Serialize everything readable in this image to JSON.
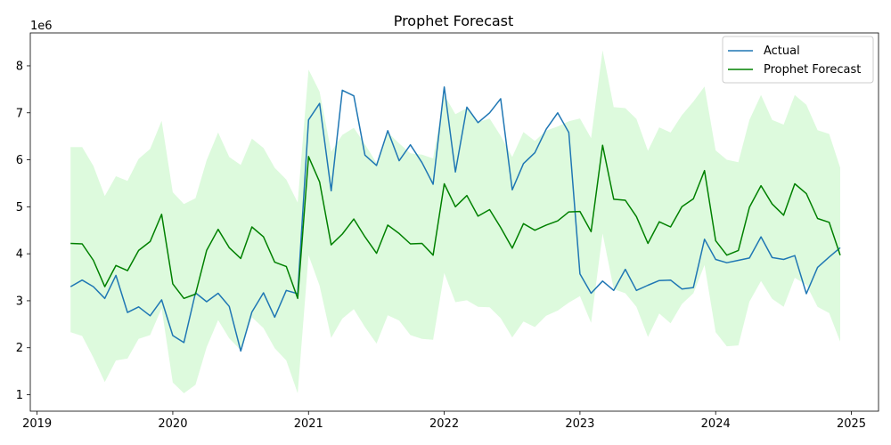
{
  "chart_data": {
    "type": "line",
    "title": "Prophet Forecast",
    "xlabel": "",
    "ylabel": "",
    "y_scale_label": "1e6",
    "xlim": [
      2018.95,
      2025.2
    ],
    "ylim": [
      0.65,
      8.7
    ],
    "x_ticks": [
      "2019",
      "2020",
      "2021",
      "2022",
      "2023",
      "2024",
      "2025"
    ],
    "x_tick_values": [
      2019,
      2020,
      2021,
      2022,
      2023,
      2024,
      2025
    ],
    "y_ticks": [
      "1",
      "2",
      "3",
      "4",
      "5",
      "6",
      "7",
      "8"
    ],
    "y_tick_values": [
      1,
      2,
      3,
      4,
      5,
      6,
      7,
      8
    ],
    "grid": false,
    "legend_position": "top-right",
    "x": [
      2019.247,
      2019.332,
      2019.415,
      2019.499,
      2019.581,
      2019.666,
      2019.748,
      2019.833,
      2019.918,
      2020.0,
      2020.082,
      2020.167,
      2020.249,
      2020.334,
      2020.416,
      2020.501,
      2020.583,
      2020.668,
      2020.751,
      2020.836,
      2020.92,
      2021.0,
      2021.082,
      2021.167,
      2021.249,
      2021.334,
      2021.416,
      2021.501,
      2021.584,
      2021.668,
      2021.751,
      2021.836,
      2021.918,
      2022.0,
      2022.082,
      2022.167,
      2022.249,
      2022.334,
      2022.416,
      2022.501,
      2022.584,
      2022.668,
      2022.751,
      2022.836,
      2022.918,
      2023.0,
      2023.082,
      2023.167,
      2023.249,
      2023.334,
      2023.416,
      2023.501,
      2023.584,
      2023.668,
      2023.751,
      2023.836,
      2023.918,
      2024.0,
      2024.082,
      2024.167,
      2024.249,
      2024.334,
      2024.416,
      2024.501,
      2024.583,
      2024.668,
      2024.751,
      2024.836,
      2024.918
    ],
    "series": [
      {
        "name": "Actual",
        "color": "#1f77b4",
        "values": [
          3.3,
          3.44,
          3.3,
          3.05,
          3.54,
          2.75,
          2.87,
          2.68,
          3.02,
          2.26,
          2.11,
          3.17,
          2.98,
          3.16,
          2.88,
          1.93,
          2.76,
          3.17,
          2.65,
          3.22,
          3.15,
          6.85,
          7.2,
          5.34,
          7.48,
          7.36,
          6.1,
          5.88,
          6.62,
          5.98,
          6.32,
          5.94,
          5.48,
          7.55,
          5.74,
          7.12,
          6.79,
          7.0,
          7.3,
          5.36,
          5.92,
          6.15,
          6.65,
          7.0,
          6.58,
          3.57,
          3.16,
          3.42,
          3.22,
          3.67,
          3.22,
          3.33,
          3.43,
          3.44,
          3.25,
          3.28,
          4.31,
          3.88,
          3.81,
          3.86,
          3.91,
          4.36,
          3.92,
          3.88,
          3.96,
          3.15,
          3.71,
          3.93,
          4.13
        ]
      },
      {
        "name": "Prophet Forecast",
        "color": "#008000",
        "values": [
          4.22,
          4.21,
          3.86,
          3.3,
          3.75,
          3.64,
          4.07,
          4.26,
          4.84,
          3.36,
          3.05,
          3.14,
          4.07,
          4.52,
          4.13,
          3.9,
          4.57,
          4.36,
          3.82,
          3.73,
          3.05,
          6.07,
          5.53,
          4.19,
          4.42,
          4.74,
          4.36,
          4.01,
          4.61,
          4.43,
          4.21,
          4.22,
          3.97,
          5.49,
          5.0,
          5.24,
          4.8,
          4.94,
          4.56,
          4.12,
          4.64,
          4.5,
          4.61,
          4.7,
          4.89,
          4.9,
          4.47,
          6.31,
          5.16,
          5.14,
          4.79,
          4.22,
          4.68,
          4.57,
          5.0,
          5.17,
          5.77,
          4.28,
          3.97,
          4.07,
          4.99,
          5.45,
          5.06,
          4.82,
          5.49,
          5.28,
          4.75,
          4.67,
          3.97
        ]
      }
    ],
    "interval": {
      "fill_color": "#90ee90",
      "opacity": 0.3,
      "upper": [
        6.27,
        6.27,
        5.87,
        5.23,
        5.65,
        5.55,
        6.02,
        6.23,
        6.83,
        5.31,
        5.06,
        5.18,
        5.99,
        6.58,
        6.06,
        5.89,
        6.45,
        6.25,
        5.83,
        5.58,
        5.09,
        7.92,
        7.45,
        6.17,
        6.53,
        6.68,
        6.33,
        5.93,
        6.58,
        6.35,
        6.14,
        6.11,
        6.03,
        7.38,
        6.97,
        7.1,
        6.8,
        6.88,
        6.51,
        6.06,
        6.59,
        6.4,
        6.62,
        6.71,
        6.82,
        6.88,
        6.46,
        8.33,
        7.12,
        7.1,
        6.87,
        6.19,
        6.69,
        6.58,
        6.95,
        7.24,
        7.56,
        6.2,
        6.0,
        5.95,
        6.85,
        7.38,
        6.85,
        6.75,
        7.38,
        7.17,
        6.63,
        6.55,
        5.83
      ],
      "lower": [
        2.33,
        2.25,
        1.79,
        1.27,
        1.73,
        1.77,
        2.19,
        2.27,
        2.84,
        1.26,
        1.03,
        1.21,
        2.01,
        2.59,
        2.2,
        1.95,
        2.65,
        2.42,
        1.99,
        1.73,
        1.03,
        3.97,
        3.32,
        2.21,
        2.62,
        2.82,
        2.44,
        2.09,
        2.69,
        2.58,
        2.27,
        2.19,
        2.17,
        3.59,
        2.97,
        3.01,
        2.87,
        2.86,
        2.63,
        2.22,
        2.56,
        2.44,
        2.68,
        2.79,
        2.96,
        3.1,
        2.53,
        4.43,
        3.25,
        3.16,
        2.87,
        2.23,
        2.73,
        2.52,
        2.93,
        3.16,
        3.76,
        2.33,
        2.03,
        2.05,
        2.98,
        3.42,
        3.04,
        2.87,
        3.49,
        3.34,
        2.87,
        2.74,
        2.13
      ]
    }
  }
}
